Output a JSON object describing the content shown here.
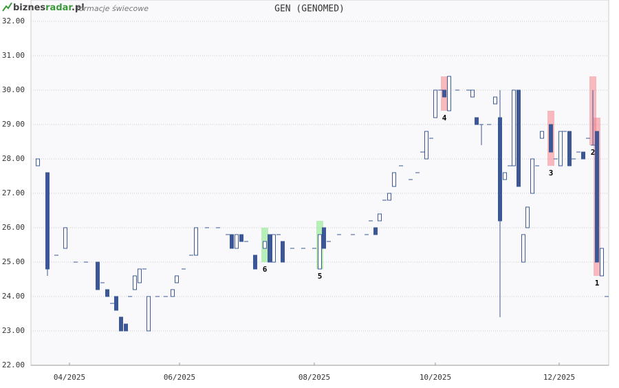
{
  "header": {
    "logo_left": "biznes",
    "logo_mid": "radar",
    "logo_right": ".pl",
    "subtitle": "formacje świecowe"
  },
  "chart_data": {
    "type": "candlestick",
    "title": "GEN (GENOMED)",
    "up_color": "#ffffff",
    "down_color": "#3b5796",
    "edge_color": "#3b5796",
    "xlim": [
      0,
      210
    ],
    "xticks": [
      {
        "value": 14,
        "label": "04/2025"
      },
      {
        "value": 54,
        "label": "06/2025"
      },
      {
        "value": 103,
        "label": "08/2025"
      },
      {
        "value": 147,
        "label": "10/2025"
      },
      {
        "value": 192,
        "label": "12/2025"
      }
    ],
    "ylim": [
      22,
      32
    ],
    "yticks": [
      {
        "value": 22,
        "label": "22.00"
      },
      {
        "value": 23,
        "label": "23.00"
      },
      {
        "value": 24,
        "label": "24.00"
      },
      {
        "value": 25,
        "label": "25.00"
      },
      {
        "value": 26,
        "label": "26.00"
      },
      {
        "value": 27,
        "label": "27.00"
      },
      {
        "value": 28,
        "label": "28.00"
      },
      {
        "value": 29,
        "label": "29.00"
      },
      {
        "value": 30,
        "label": "30.00"
      },
      {
        "value": 31,
        "label": "31.00"
      },
      {
        "value": 32,
        "label": "32.00"
      }
    ],
    "grid": true,
    "x": [
      2.5,
      6,
      9.25,
      12.5,
      16.25,
      20,
      24.25,
      26,
      27.75,
      29.5,
      31,
      32.75,
      34.5,
      36,
      37.75,
      39.5,
      41.25,
      42.75,
      46,
      49,
      51.5,
      53,
      55.5,
      58.25,
      60,
      64,
      68,
      71.5,
      73,
      74.75,
      76.5,
      78.25,
      81.5,
      85,
      86.75,
      88.25,
      90,
      91.5,
      95,
      99,
      103,
      105,
      106.5,
      108.25,
      112,
      117,
      122,
      123.5,
      125.25,
      126.75,
      128.5,
      130.25,
      132,
      134.5,
      138,
      140.5,
      142.25,
      143.75,
      145.5,
      147,
      148.75,
      150.25,
      152,
      155,
      159,
      160.5,
      162,
      163.75,
      166.5,
      168.75,
      170.5,
      172.25,
      174,
      175.5,
      177.25,
      179,
      180.5,
      182.25,
      184,
      185.75,
      189,
      190.75,
      192.5,
      194,
      195.75,
      197.25,
      199,
      200.75,
      202.5,
      204.25,
      205.75,
      207.5,
      209.25
    ],
    "open": [
      27.8,
      27.6,
      25.2,
      25.4,
      25,
      25,
      25.0,
      24.4,
      24.2,
      23.8,
      24.0,
      23.4,
      23.2,
      24,
      24.2,
      24.4,
      24.8,
      23.0,
      24,
      24,
      24.0,
      24.4,
      24.8,
      25.2,
      25.2,
      26,
      26,
      25.8,
      25.8,
      25.4,
      25.8,
      25.6,
      25.2,
      25.4,
      25.8,
      25.0,
      25.8,
      25.6,
      25.4,
      25.4,
      25.4,
      24.8,
      26.0,
      25.6,
      25.8,
      25.8,
      25.8,
      26.2,
      26.0,
      26.2,
      26.8,
      26.8,
      27.2,
      27.8,
      27.4,
      27.6,
      28.2,
      28.0,
      28.6,
      29.2,
      30,
      30.0,
      29.4,
      30,
      30,
      29.8,
      29.2,
      29.0,
      29,
      29.6,
      29.2,
      27.4,
      27.8,
      27.8,
      30.0,
      25.0,
      26.0,
      27.0,
      27.8,
      28.6,
      29.0,
      28.0,
      27.8,
      28.8,
      28.8,
      28.0,
      28.2,
      28.2,
      28.6,
      28.4,
      28.8,
      24.6,
      24.0
    ],
    "high": [
      28.0,
      27.6,
      25.2,
      26.0,
      25,
      25,
      25.0,
      24.4,
      24.2,
      23.8,
      24.0,
      23.4,
      23.2,
      24,
      24.6,
      24.8,
      24.8,
      24.0,
      24,
      24,
      24.2,
      24.6,
      24.8,
      25.2,
      26.0,
      26,
      26,
      25.8,
      25.8,
      25.8,
      25.8,
      25.6,
      25.2,
      25.6,
      25.8,
      25.8,
      25.8,
      25.6,
      25.4,
      25.4,
      25.4,
      25.8,
      26.0,
      25.6,
      25.8,
      25.8,
      25.8,
      26.2,
      26.0,
      26.4,
      26.8,
      27.0,
      27.6,
      27.8,
      27.4,
      27.6,
      28.2,
      28.8,
      28.6,
      30.0,
      30,
      30.0,
      30.4,
      30,
      30,
      30.0,
      29.2,
      29.0,
      29,
      29.8,
      30.0,
      27.6,
      27.8,
      30.0,
      30.0,
      25.8,
      26.6,
      28.0,
      27.8,
      28.8,
      29.0,
      28.0,
      28.8,
      28.8,
      28.8,
      28.0,
      28.2,
      28.2,
      28.6,
      30.0,
      28.8,
      25.4,
      24.0
    ],
    "low": [
      27.8,
      24.6,
      25.2,
      25.4,
      25,
      25,
      24.2,
      24.4,
      24.0,
      23.8,
      23.6,
      23.0,
      23.0,
      24,
      24.2,
      24.4,
      24.8,
      23.0,
      24,
      24,
      24.0,
      24.4,
      24.8,
      25.2,
      25.2,
      26,
      26,
      25.8,
      25.4,
      25.4,
      25.6,
      25.6,
      24.8,
      25.4,
      25.0,
      25.0,
      25.8,
      25.0,
      25.4,
      25.4,
      25.4,
      24.8,
      25.4,
      25.6,
      25.8,
      25.8,
      25.8,
      26.2,
      25.8,
      26.2,
      26.8,
      26.8,
      27.2,
      27.8,
      27.4,
      27.6,
      28.2,
      28.0,
      28.6,
      29.2,
      30,
      29.8,
      29.4,
      30,
      30,
      29.8,
      29.0,
      28.4,
      29,
      29.6,
      23.4,
      27.4,
      27.8,
      27.8,
      27.2,
      25.0,
      26.0,
      27.0,
      27.8,
      28.6,
      28.2,
      28.0,
      27.8,
      28.8,
      27.8,
      28.0,
      28.2,
      28.0,
      28.6,
      28.4,
      25.0,
      24.6,
      24.0
    ],
    "close": [
      28.0,
      24.8,
      25.2,
      26.0,
      25,
      25,
      24.2,
      24.4,
      24.0,
      23.8,
      23.6,
      23.0,
      23.0,
      24,
      24.6,
      24.8,
      24.8,
      24.0,
      24,
      24,
      24.2,
      24.6,
      24.8,
      25.2,
      26.0,
      26,
      26,
      25.8,
      25.4,
      25.8,
      25.6,
      25.6,
      24.8,
      25.6,
      25.0,
      25.8,
      25.8,
      25.0,
      25.4,
      25.4,
      25.4,
      25.8,
      25.4,
      25.6,
      25.8,
      25.8,
      25.8,
      26.2,
      25.8,
      26.4,
      26.8,
      27.0,
      27.6,
      27.8,
      27.4,
      27.6,
      28.2,
      28.8,
      28.6,
      30.0,
      30,
      29.8,
      30.4,
      30,
      30,
      30.0,
      29.0,
      29.0,
      29,
      29.8,
      26.2,
      27.6,
      27.8,
      30.0,
      27.2,
      25.8,
      26.6,
      28.0,
      27.8,
      28.8,
      28.2,
      28.0,
      28.8,
      28.8,
      27.8,
      28.0,
      28.2,
      28.0,
      28.6,
      28.4,
      25.0,
      25.4,
      24.0
    ],
    "patterns": [
      {
        "label": "1",
        "x": 205.75,
        "low": 24.6,
        "high": 29.2,
        "color": "rgba(245,120,130,0.5)"
      },
      {
        "label": "2",
        "x": 204.25,
        "low": 28.4,
        "high": 30.4,
        "color": "rgba(245,120,130,0.5)"
      },
      {
        "label": "3",
        "x": 189,
        "low": 27.8,
        "high": 29.4,
        "color": "rgba(245,120,130,0.5)"
      },
      {
        "label": "4",
        "x": 150.25,
        "low": 29.4,
        "high": 30.4,
        "color": "rgba(245,120,130,0.5)"
      },
      {
        "label": "5",
        "x": 105,
        "low": 24.8,
        "high": 26.2,
        "color": "rgba(120,230,120,0.5)"
      },
      {
        "label": "6",
        "x": 85,
        "low": 25.0,
        "high": 26.0,
        "color": "rgba(120,230,120,0.5)"
      }
    ]
  }
}
